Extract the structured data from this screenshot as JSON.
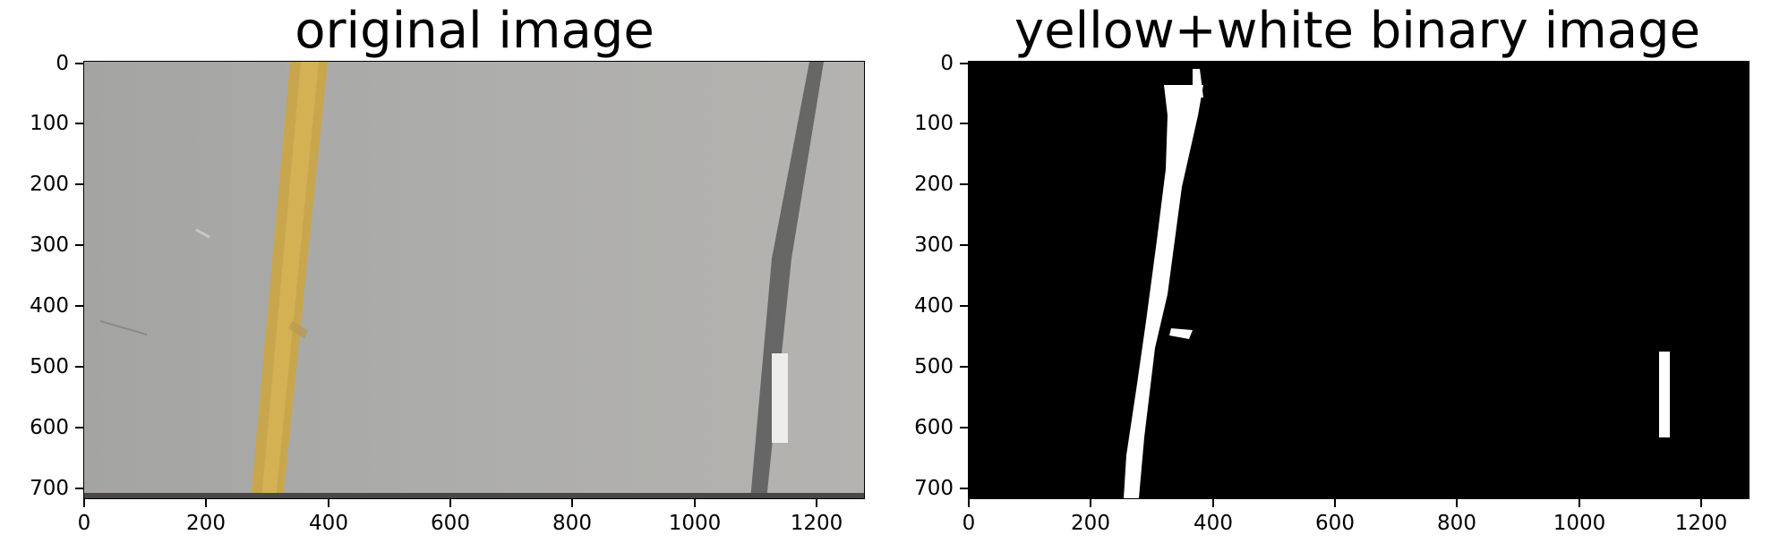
{
  "panels": [
    {
      "title": "original image",
      "y_ticks": [
        "0",
        "100",
        "200",
        "300",
        "400",
        "500",
        "600",
        "700"
      ],
      "x_ticks": [
        "0",
        "200",
        "400",
        "600",
        "800",
        "1000",
        "1200"
      ]
    },
    {
      "title": "yellow+white binary image",
      "y_ticks": [
        "0",
        "100",
        "200",
        "300",
        "400",
        "500",
        "600",
        "700"
      ],
      "x_ticks": [
        "0",
        "200",
        "400",
        "600",
        "800",
        "1000",
        "1200"
      ]
    }
  ],
  "colors": {
    "road_gray": "#a7a8a6",
    "yellow_lane": "#c9a548",
    "dark_lane": "#5e5e5e",
    "binary_background": "#000000",
    "binary_foreground": "#ffffff"
  }
}
